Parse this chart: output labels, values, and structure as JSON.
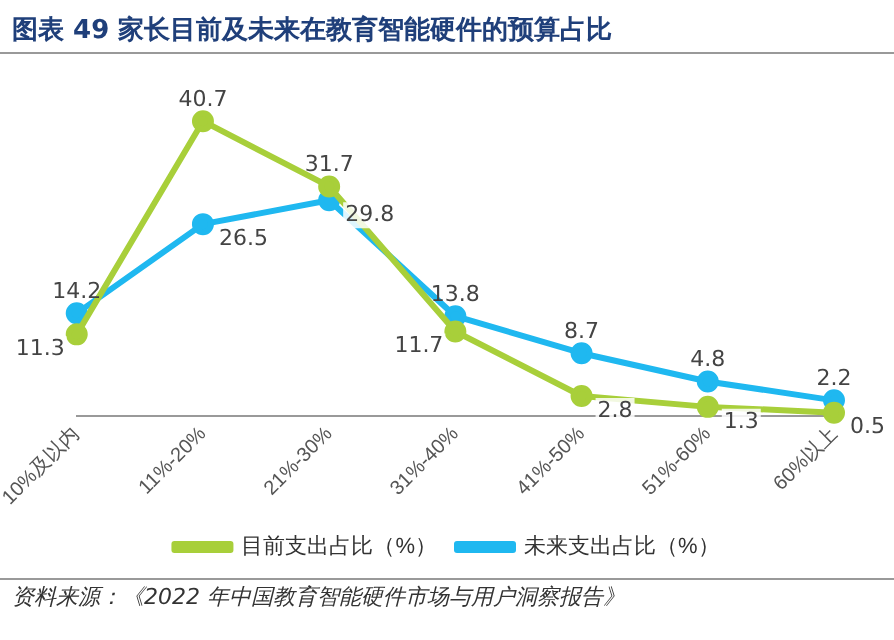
{
  "chart_data": {
    "type": "line",
    "title": "图表 49   家长目前及未来在教育智能硬件的预算占比",
    "categories": [
      "10%及以内",
      "11%-20%",
      "21%-30%",
      "31%-40%",
      "41%-50%",
      "51%-60%",
      "60%以上"
    ],
    "series": [
      {
        "name": "目前支出占比（%）",
        "color": "#a8cf3a",
        "values": [
          11.3,
          40.7,
          31.7,
          11.7,
          2.8,
          1.3,
          0.5
        ]
      },
      {
        "name": "未来支出占比（%）",
        "color": "#1fb8f0",
        "values": [
          14.2,
          26.5,
          29.8,
          13.8,
          8.7,
          4.8,
          2.2
        ]
      }
    ],
    "data_labels": true,
    "legend": "bottom",
    "marker": "circle",
    "grid": false,
    "annotations": [
      "资料来源：《2022 年中国教育智能硬件市场与用户洞察报告》"
    ]
  }
}
